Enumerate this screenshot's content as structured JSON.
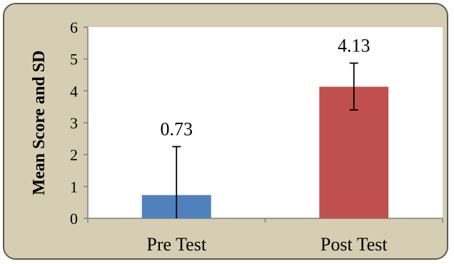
{
  "chart_data": {
    "type": "bar",
    "categories": [
      "Pre Test",
      "Post Test"
    ],
    "values": [
      0.73,
      4.13
    ],
    "value_labels": [
      "0.73",
      "4.13"
    ],
    "error_bars": {
      "Pre Test": {
        "upper": 2.25,
        "lower": 0.0
      },
      "Post Test": {
        "upper": 4.87,
        "lower": 3.4
      }
    },
    "colors": [
      "#4f81bd",
      "#c0504d"
    ],
    "ylabel": "Mean Score and SD",
    "xlabel": "",
    "ylim": [
      0,
      6
    ],
    "yticks": [
      0,
      1,
      2,
      3,
      4,
      5,
      6
    ],
    "grid": false,
    "legend": "none",
    "background_color": "#d6ceb2",
    "plot_background_color": "#ffffff"
  }
}
